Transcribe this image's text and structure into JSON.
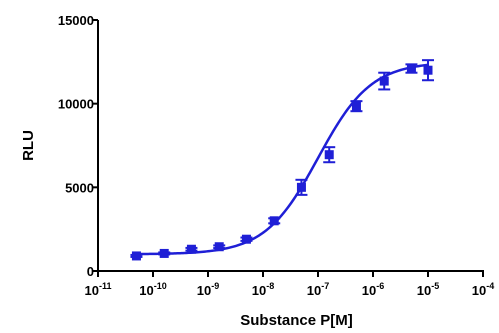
{
  "chart_data": {
    "type": "scatter",
    "title": "",
    "xlabel": "Substance P[M]",
    "ylabel": "RLU",
    "x_scale": "log",
    "xlim": [
      1e-11,
      0.0001
    ],
    "ylim": [
      0,
      15000
    ],
    "x_ticks": [
      {
        "base": "10",
        "exp": "-11"
      },
      {
        "base": "10",
        "exp": "-10"
      },
      {
        "base": "10",
        "exp": "-9"
      },
      {
        "base": "10",
        "exp": "-8"
      },
      {
        "base": "10",
        "exp": "-7"
      },
      {
        "base": "10",
        "exp": "-6"
      },
      {
        "base": "10",
        "exp": "-5"
      },
      {
        "base": "10",
        "exp": "-4"
      }
    ],
    "y_ticks": [
      "0",
      "5000",
      "10000",
      "15000"
    ],
    "grid": false,
    "marker": "square",
    "color": "#1f1fd6",
    "points": [
      {
        "x": 5e-11,
        "y": 900,
        "err": 60
      },
      {
        "x": 1.6e-10,
        "y": 1050,
        "err": 60
      },
      {
        "x": 5e-10,
        "y": 1300,
        "err": 80
      },
      {
        "x": 1.6e-09,
        "y": 1450,
        "err": 80
      },
      {
        "x": 5e-09,
        "y": 1900,
        "err": 100
      },
      {
        "x": 1.6e-08,
        "y": 3000,
        "err": 150
      },
      {
        "x": 5e-08,
        "y": 5000,
        "err": 450
      },
      {
        "x": 1.6e-07,
        "y": 6950,
        "err": 450
      },
      {
        "x": 5e-07,
        "y": 9850,
        "err": 300
      },
      {
        "x": 1.6e-06,
        "y": 11350,
        "err": 500
      },
      {
        "x": 5e-06,
        "y": 12100,
        "err": 250
      },
      {
        "x": 1e-05,
        "y": 12000,
        "err": 600
      }
    ],
    "fit": {
      "model": "four-parameter-logistic",
      "bottom": 1000,
      "top": 12500,
      "log_ec50": -7,
      "hill": 0.9
    }
  }
}
